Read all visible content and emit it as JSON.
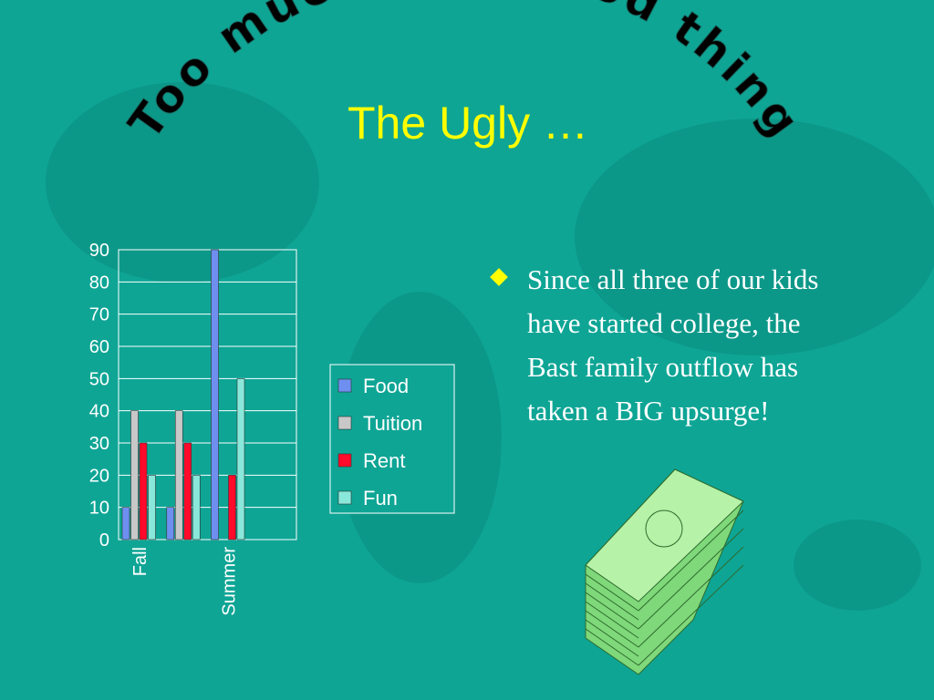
{
  "arc_title": "Too much of a good thing",
  "title": "The Ugly …",
  "bullet": "Since all three of our kids have started college, the Bast family outflow has taken a BIG upsurge!",
  "chart_data": {
    "type": "bar",
    "categories": [
      "Fall",
      null,
      "Summer",
      null
    ],
    "series": [
      {
        "name": "Food",
        "color": "#6f8ff0",
        "values": [
          10,
          10,
          90,
          0
        ]
      },
      {
        "name": "Tuition",
        "color": "#c8c8c8",
        "values": [
          40,
          40,
          0,
          0
        ]
      },
      {
        "name": "Rent",
        "color": "#ff0a2a",
        "values": [
          30,
          30,
          20,
          0
        ]
      },
      {
        "name": "Fun",
        "color": "#8ae8da",
        "values": [
          20,
          20,
          50,
          0
        ]
      }
    ],
    "ylim": [
      0,
      90
    ],
    "yticks": [
      0,
      10,
      20,
      30,
      40,
      50,
      60,
      70,
      80,
      90
    ],
    "grid": true,
    "legend": "right"
  }
}
